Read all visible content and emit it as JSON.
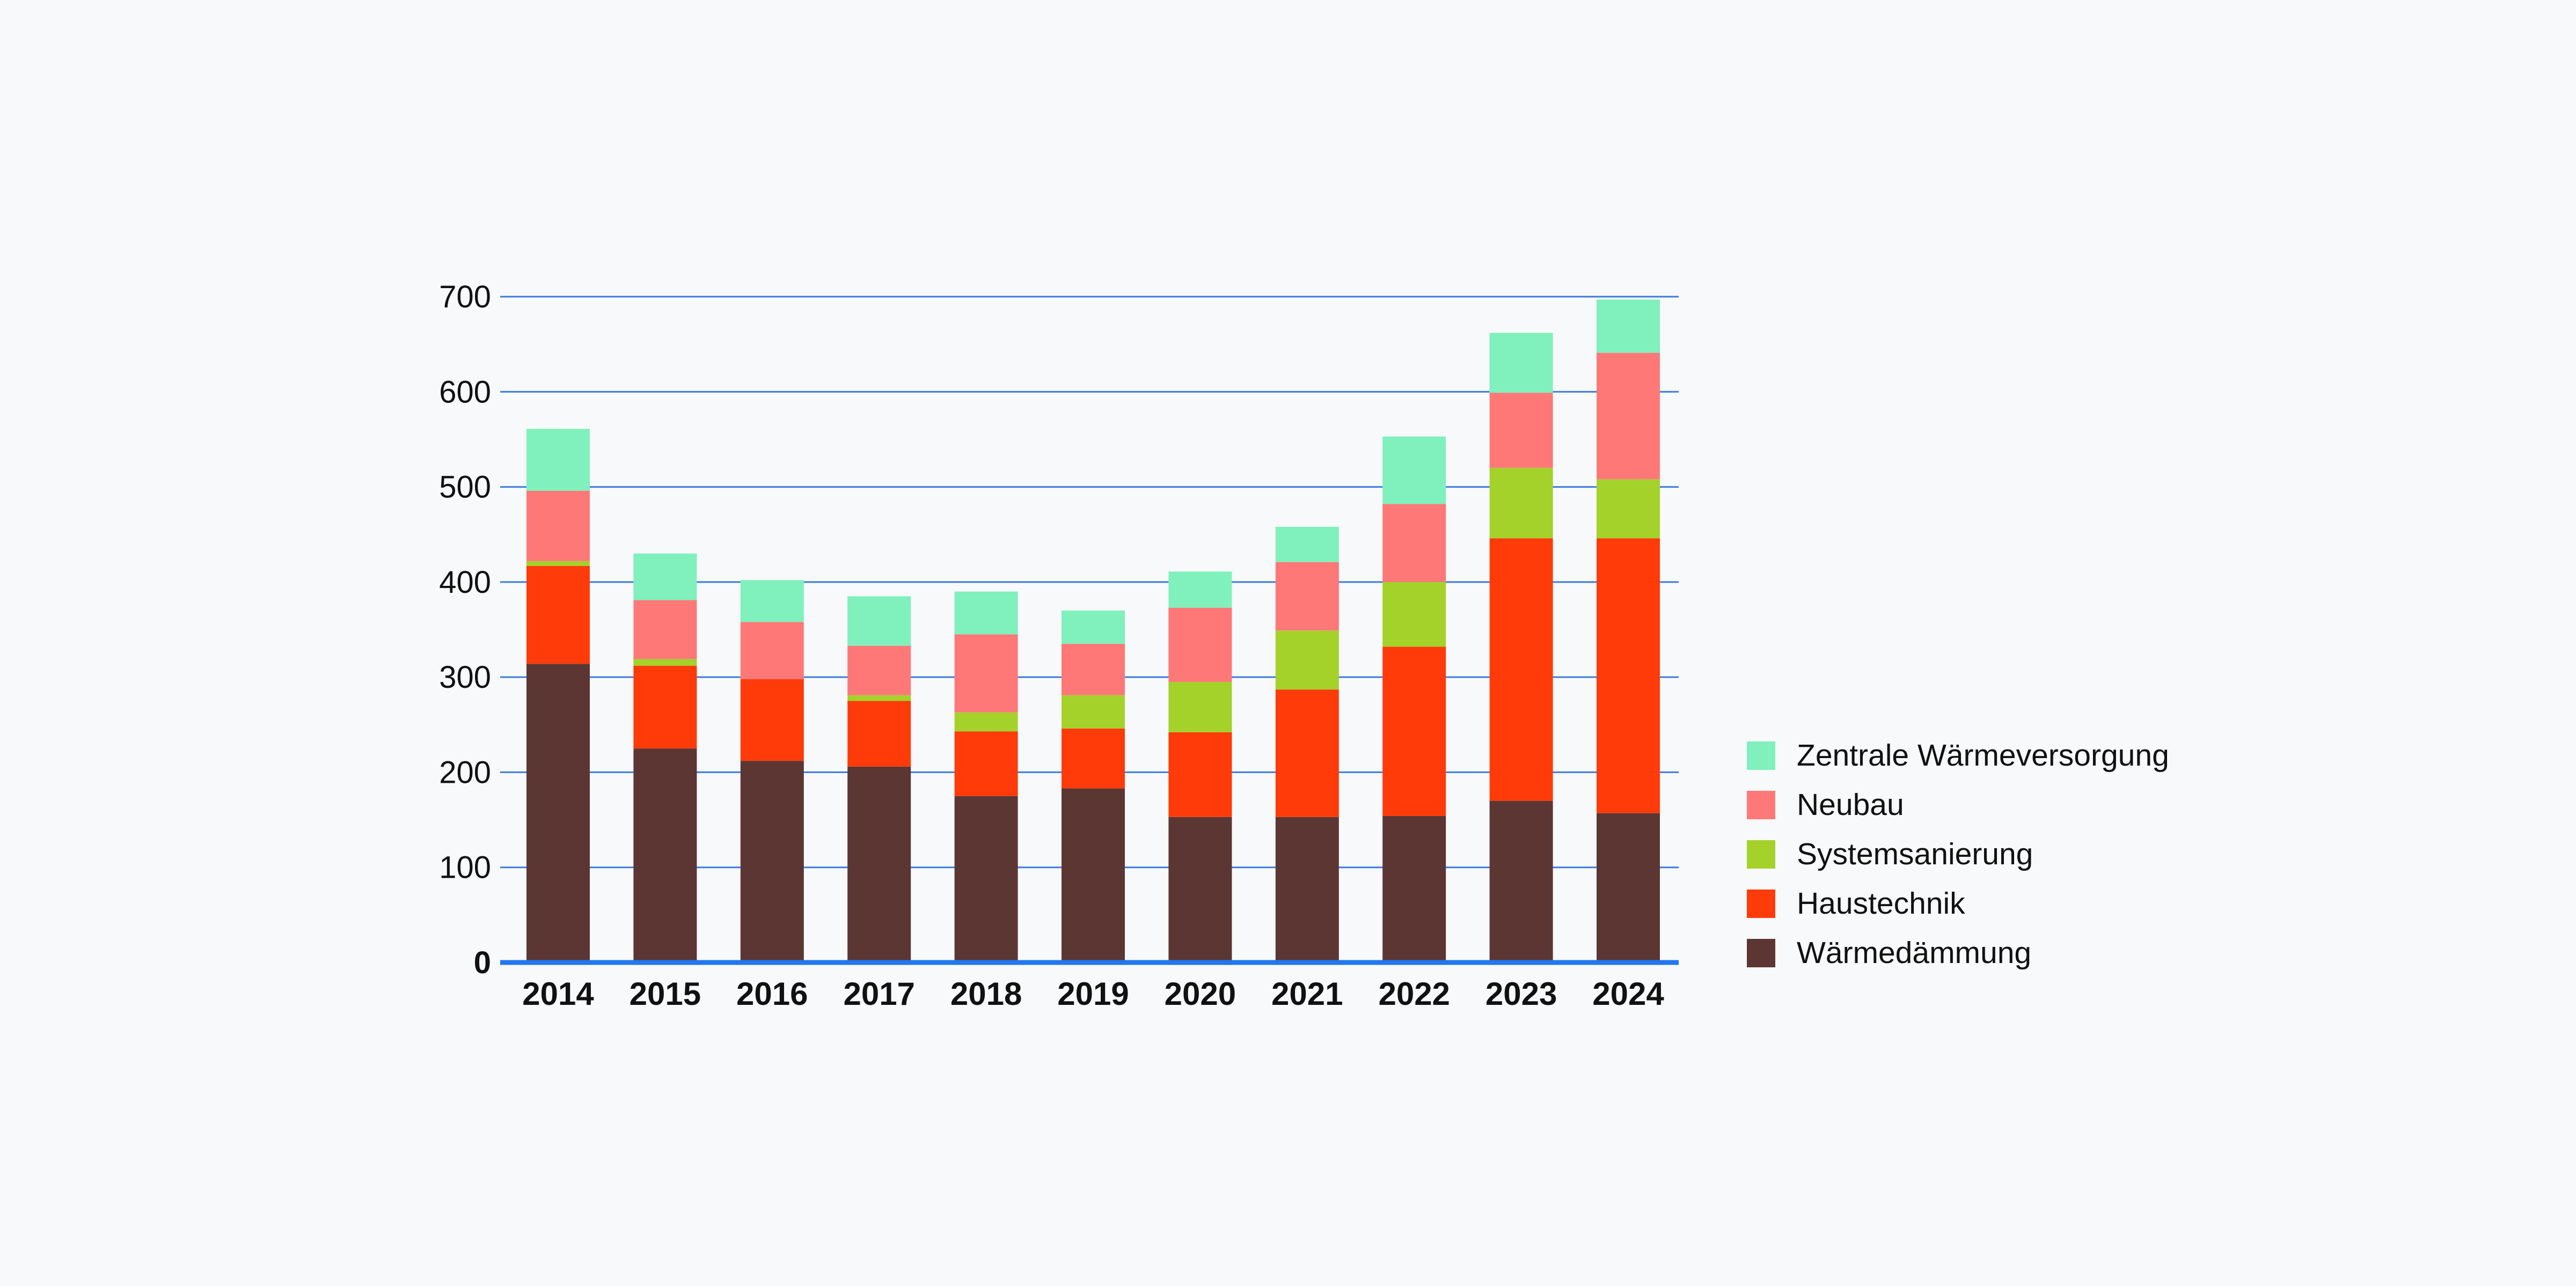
{
  "chart_data": {
    "type": "bar",
    "stacked": true,
    "categories": [
      "2014",
      "2015",
      "2016",
      "2017",
      "2018",
      "2019",
      "2020",
      "2021",
      "2022",
      "2023",
      "2024"
    ],
    "series": [
      {
        "name": "Wärmedämmung",
        "color": "#5c3633",
        "values": [
          314,
          225,
          212,
          206,
          175,
          183,
          153,
          153,
          154,
          170,
          157
        ]
      },
      {
        "name": "Haustechnik",
        "color": "#ff3b0a",
        "values": [
          103,
          87,
          86,
          69,
          68,
          63,
          89,
          134,
          178,
          276,
          289
        ]
      },
      {
        "name": "Systemsanierung",
        "color": "#a4d22a",
        "values": [
          5,
          7,
          0,
          6,
          20,
          35,
          53,
          62,
          68,
          74,
          62
        ]
      },
      {
        "name": "Neubau",
        "color": "#ff7878",
        "values": [
          74,
          62,
          60,
          52,
          82,
          54,
          78,
          72,
          82,
          79,
          133
        ]
      },
      {
        "name": "Zentrale Wärmeversorgung",
        "color": "#80f0bc",
        "values": [
          65,
          49,
          44,
          52,
          45,
          35,
          38,
          37,
          71,
          63,
          56
        ]
      }
    ],
    "ylim": [
      0,
      700
    ],
    "yticks": [
      0,
      100,
      200,
      300,
      400,
      500,
      600,
      700
    ],
    "grid": true,
    "legend_position": "right",
    "xlabel": "",
    "ylabel": "",
    "colors": {
      "gridline": "#3d7be0",
      "baseline": "#2177f0",
      "text": "#111111",
      "background": "#f7f9fa"
    }
  }
}
